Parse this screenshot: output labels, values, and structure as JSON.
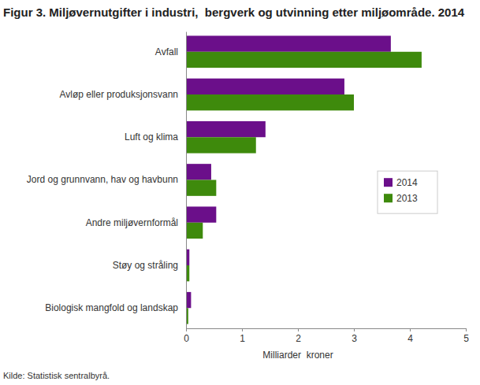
{
  "chart_data": {
    "type": "bar",
    "orientation": "horizontal",
    "title": "Figur 3. Miljøvernutgifter i industri,  bergverk og utvinning etter miljøområde. 2014",
    "categories": [
      "Avfall",
      "Avløp eller produksjonsvann",
      "Luft og klima",
      "Jord og grunnvann, hav og havbunn",
      "Andre miljøvernformål",
      "Støy og stråling",
      "Biologisk mangfold og landskap"
    ],
    "series": [
      {
        "name": "2014",
        "color": "#6b0f8a",
        "values": [
          3.66,
          2.83,
          1.42,
          0.45,
          0.54,
          0.06,
          0.09
        ]
      },
      {
        "name": "2013",
        "color": "#3e8a0c",
        "values": [
          4.21,
          3.0,
          1.25,
          0.54,
          0.3,
          0.06,
          0.04
        ]
      }
    ],
    "x_label": "Milliarder  kroner",
    "xlim": [
      0,
      5
    ],
    "xticks": [
      0,
      1,
      2,
      3,
      4,
      5
    ],
    "grid": false,
    "legend": "right",
    "source": "Kilde: Statistisk sentralbyrå."
  }
}
